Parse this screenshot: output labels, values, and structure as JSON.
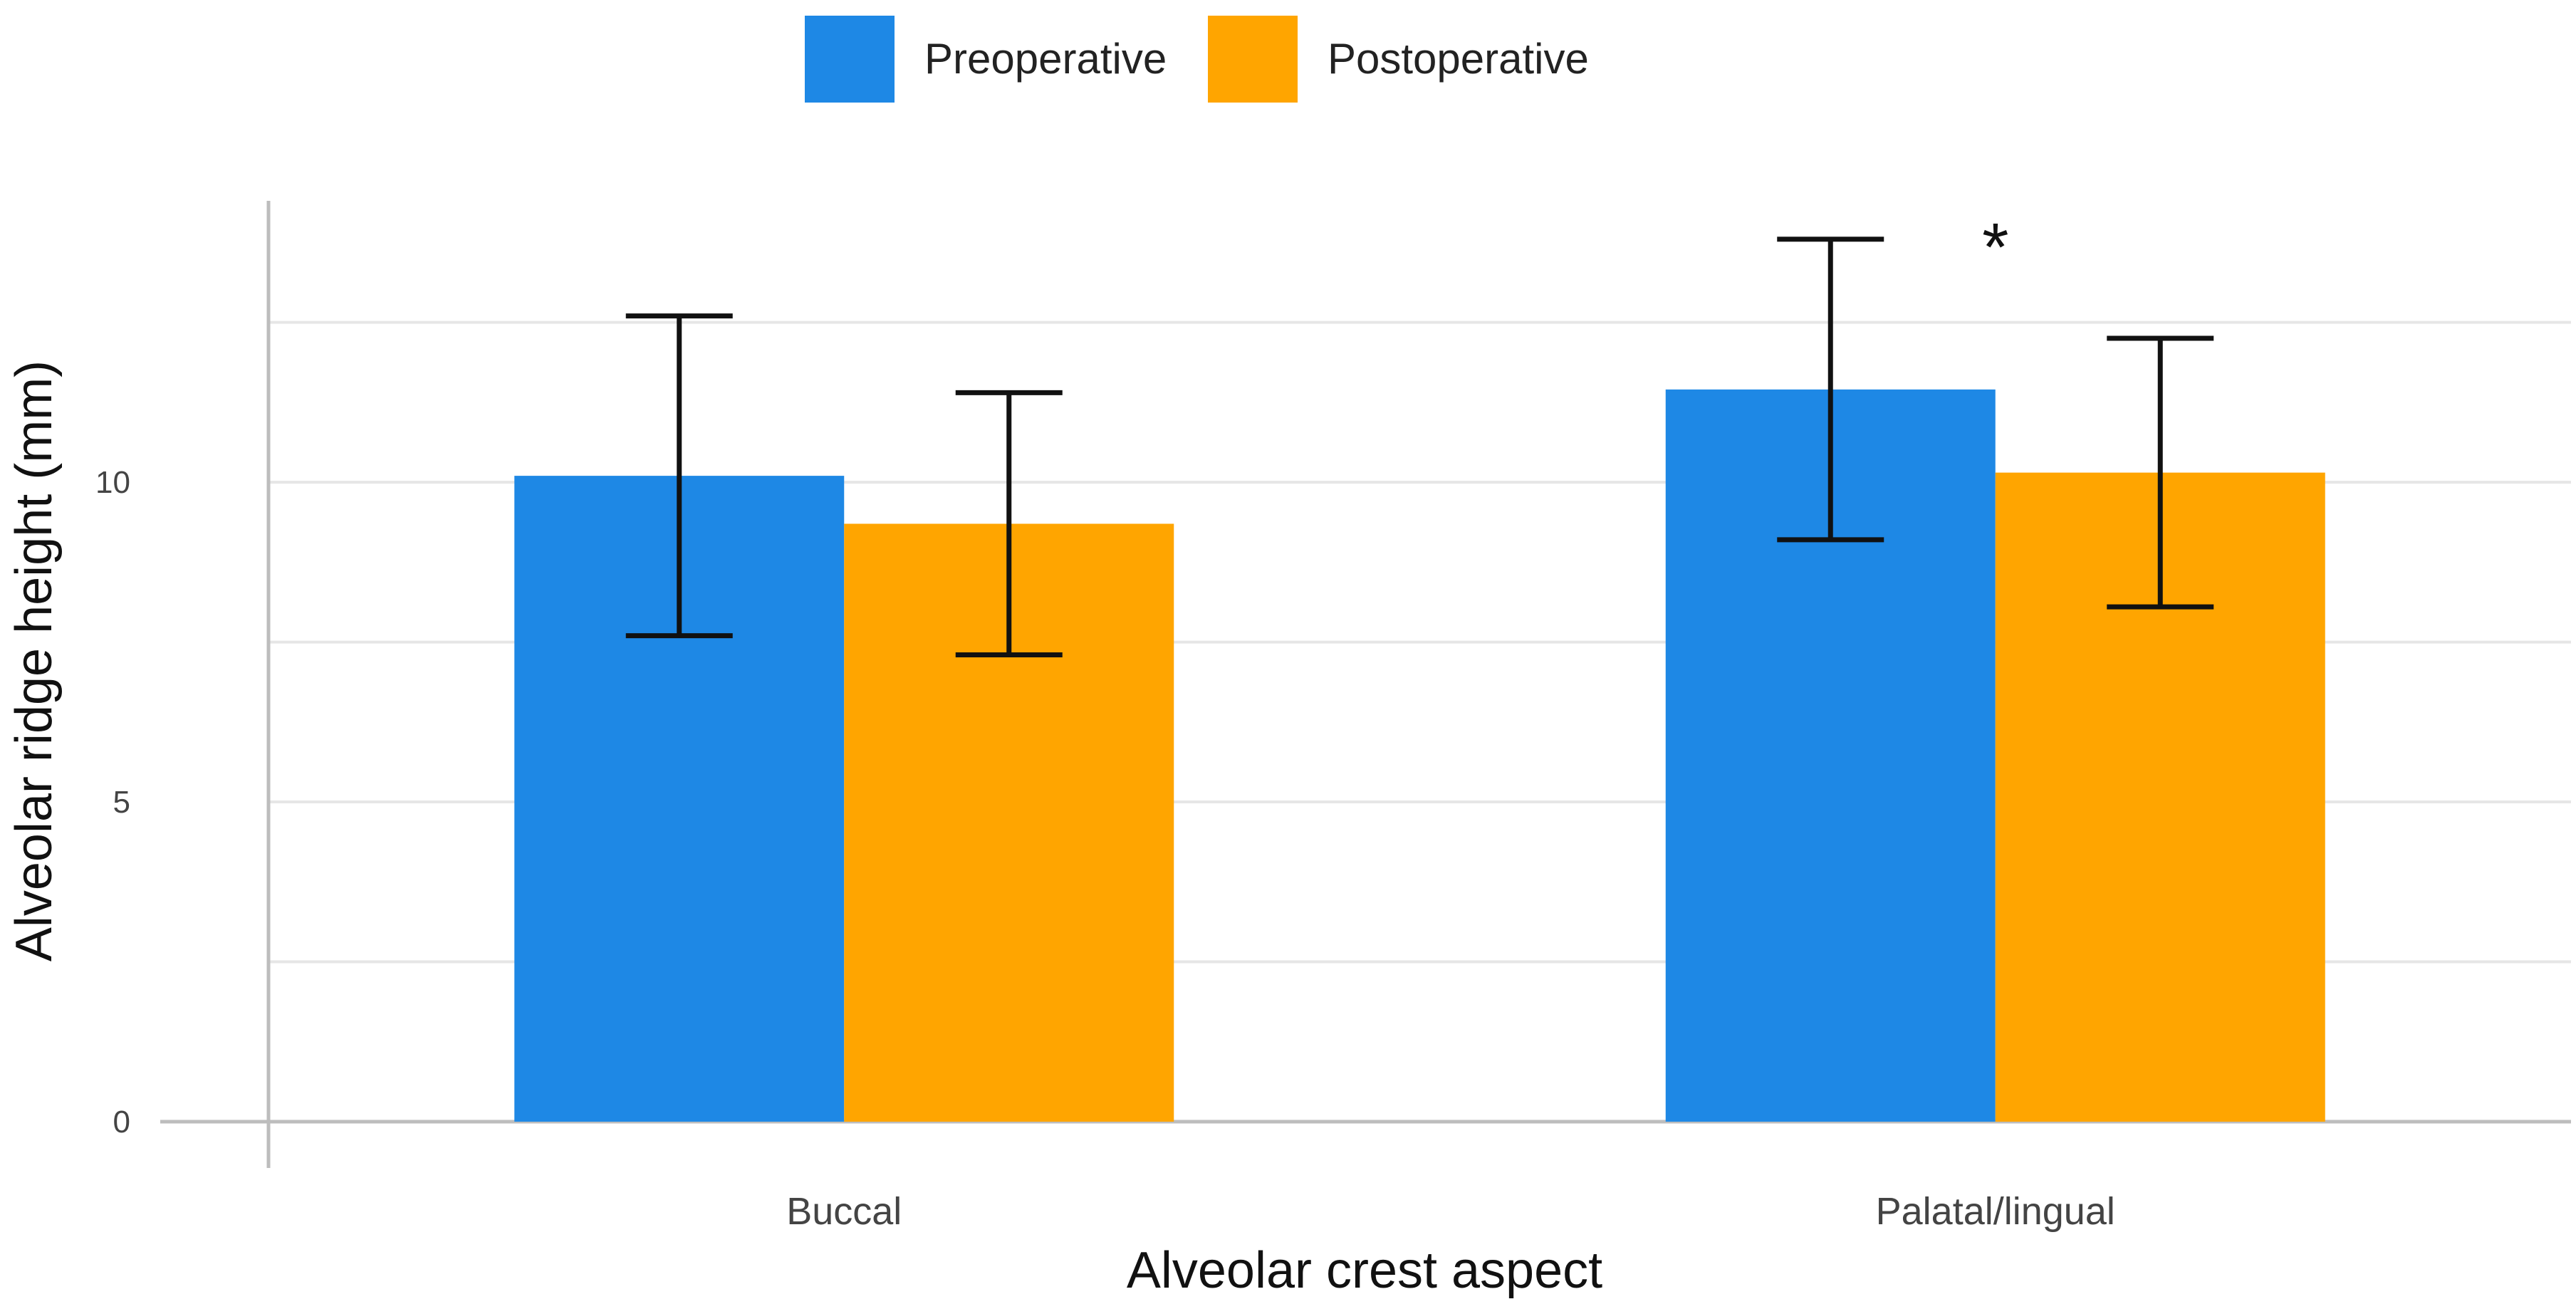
{
  "chart_data": {
    "type": "bar",
    "categories": [
      "Buccal",
      "Palatal/lingual"
    ],
    "series": [
      {
        "name": "Preoperative",
        "color": "#1E88E5",
        "values": [
          10.1,
          11.45
        ],
        "error": [
          2.5,
          2.35
        ]
      },
      {
        "name": "Postoperative",
        "color": "#FFA500",
        "values": [
          9.35,
          10.15
        ],
        "error": [
          2.05,
          2.1
        ]
      }
    ],
    "xlabel": "Alveolar crest aspect",
    "ylabel": "Alveolar ridge height (mm)",
    "ylim": [
      0,
      14.4
    ],
    "yticks": [
      0,
      5,
      10
    ],
    "gridlines": [
      0,
      2.5,
      5,
      7.5,
      10,
      12.5
    ],
    "grid": true,
    "legend_position": "top",
    "annotations": [
      {
        "text": "*",
        "category": "Palatal/lingual"
      }
    ]
  }
}
